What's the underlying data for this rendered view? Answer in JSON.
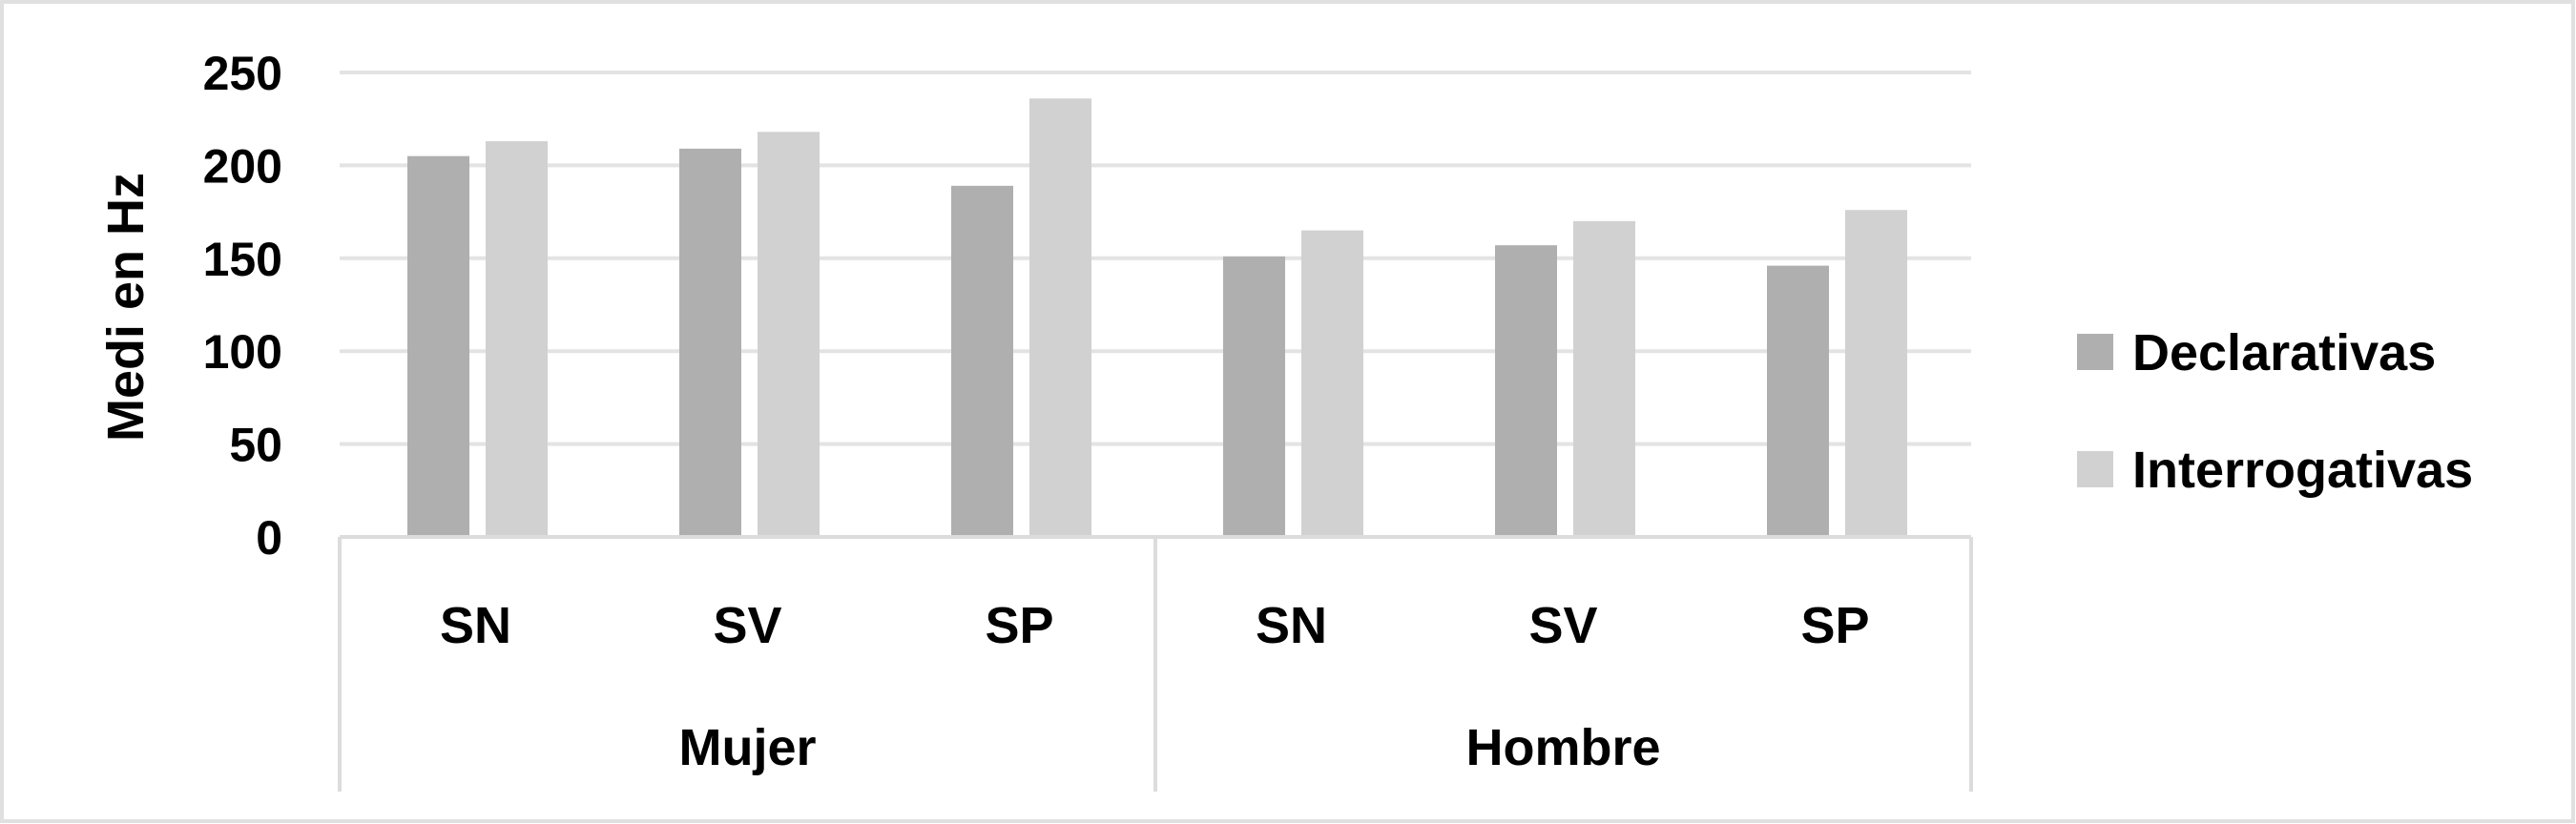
{
  "chart_data": {
    "type": "bar",
    "title": "",
    "ylabel": "Medi en Hz",
    "xlabel": "",
    "ylim": [
      0,
      250
    ],
    "yticks": [
      0,
      50,
      100,
      150,
      200,
      250
    ],
    "grid": true,
    "legend_position": "right",
    "groups": [
      {
        "label": "Mujer",
        "categories": [
          "SN",
          "SV",
          "SP"
        ]
      },
      {
        "label": "Hombre",
        "categories": [
          "SN",
          "SV",
          "SP"
        ]
      }
    ],
    "series": [
      {
        "name": "Declarativas",
        "color": "#afafaf",
        "values": [
          205,
          209,
          189,
          151,
          157,
          146
        ]
      },
      {
        "name": "Interrogativas",
        "color": "#d1d1d1",
        "values": [
          213,
          218,
          236,
          165,
          170,
          176
        ]
      }
    ]
  }
}
